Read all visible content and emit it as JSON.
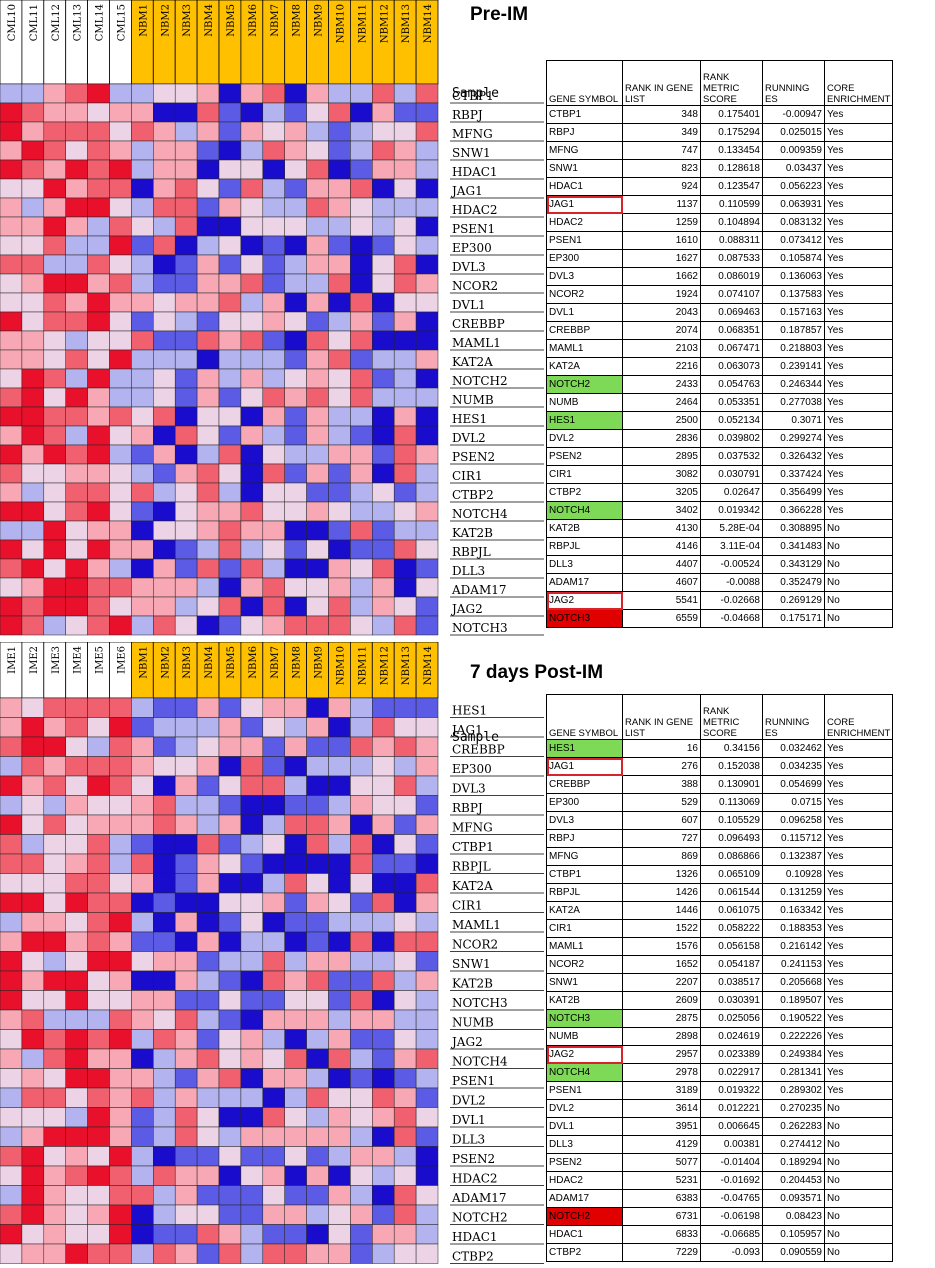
{
  "colors": {
    "sample_header_bg": "#ffc000",
    "heat_red": "#e8102a",
    "heat_blue": "#1a0ccc",
    "highlight_green": "#7ed957",
    "highlight_red": "#e00000",
    "box_outline": "#d9232a"
  },
  "table_headers": [
    "GENE SYMBOL",
    "RANK IN GENE LIST",
    "RANK METRIC SCORE",
    "RUNNING ES",
    "CORE ENRICHMENT"
  ],
  "chart_data": [
    {
      "type": "heatmap",
      "title": "Pre-IM",
      "row_header": "Sample",
      "columns": [
        "CML10",
        "CML11",
        "CML12",
        "CML13",
        "CML14",
        "CML15",
        "NBM1",
        "NBM2",
        "NBM3",
        "NBM4",
        "NBM5",
        "NBM6",
        "NBM7",
        "NBM8",
        "NBM9",
        "NBM10",
        "NBM11",
        "NBM12",
        "NBM13",
        "NBM14"
      ],
      "highlighted_columns": [
        "NBM1",
        "NBM2",
        "NBM3",
        "NBM4",
        "NBM5",
        "NBM6",
        "NBM7",
        "NBM8",
        "NBM9",
        "NBM10",
        "NBM11",
        "NBM12",
        "NBM13",
        "NBM14"
      ],
      "rows": [
        "CTBP1",
        "RBPJ",
        "MFNG",
        "SNW1",
        "HDAC1",
        "JAG1",
        "HDAC2",
        "PSEN1",
        "EP300",
        "DVL3",
        "NCOR2",
        "DVL1",
        "CREBBP",
        "MAML1",
        "KAT2A",
        "NOTCH2",
        "NUMB",
        "HES1",
        "DVL2",
        "PSEN2",
        "CIR1",
        "CTBP2",
        "NOTCH4",
        "KAT2B",
        "RBPJL",
        "DLL3",
        "ADAM17",
        "JAG2",
        "NOTCH3"
      ],
      "table": [
        {
          "symbol": "CTBP1",
          "rank": "348",
          "score": "0.175401",
          "es": "-0.00947",
          "core": "Yes"
        },
        {
          "symbol": "RBPJ",
          "rank": "349",
          "score": "0.175294",
          "es": "0.025015",
          "core": "Yes"
        },
        {
          "symbol": "MFNG",
          "rank": "747",
          "score": "0.133454",
          "es": "0.009359",
          "core": "Yes"
        },
        {
          "symbol": "SNW1",
          "rank": "823",
          "score": "0.128618",
          "es": "0.03437",
          "core": "Yes"
        },
        {
          "symbol": "HDAC1",
          "rank": "924",
          "score": "0.123547",
          "es": "0.056223",
          "core": "Yes"
        },
        {
          "symbol": "JAG1",
          "rank": "1137",
          "score": "0.110599",
          "es": "0.063931",
          "core": "Yes",
          "mark": "boxed"
        },
        {
          "symbol": "HDAC2",
          "rank": "1259",
          "score": "0.104894",
          "es": "0.083132",
          "core": "Yes"
        },
        {
          "symbol": "PSEN1",
          "rank": "1610",
          "score": "0.088311",
          "es": "0.073412",
          "core": "Yes"
        },
        {
          "symbol": "EP300",
          "rank": "1627",
          "score": "0.087533",
          "es": "0.105874",
          "core": "Yes"
        },
        {
          "symbol": "DVL3",
          "rank": "1662",
          "score": "0.086019",
          "es": "0.136063",
          "core": "Yes"
        },
        {
          "symbol": "NCOR2",
          "rank": "1924",
          "score": "0.074107",
          "es": "0.137583",
          "core": "Yes"
        },
        {
          "symbol": "DVL1",
          "rank": "2043",
          "score": "0.069463",
          "es": "0.157163",
          "core": "Yes"
        },
        {
          "symbol": "CREBBP",
          "rank": "2074",
          "score": "0.068351",
          "es": "0.187857",
          "core": "Yes"
        },
        {
          "symbol": "MAML1",
          "rank": "2103",
          "score": "0.067471",
          "es": "0.218803",
          "core": "Yes"
        },
        {
          "symbol": "KAT2A",
          "rank": "2216",
          "score": "0.063073",
          "es": "0.239141",
          "core": "Yes"
        },
        {
          "symbol": "NOTCH2",
          "rank": "2433",
          "score": "0.054763",
          "es": "0.246344",
          "core": "Yes",
          "mark": "green"
        },
        {
          "symbol": "NUMB",
          "rank": "2464",
          "score": "0.053351",
          "es": "0.277038",
          "core": "Yes"
        },
        {
          "symbol": "HES1",
          "rank": "2500",
          "score": "0.052134",
          "es": "0.3071",
          "core": "Yes",
          "mark": "green"
        },
        {
          "symbol": "DVL2",
          "rank": "2836",
          "score": "0.039802",
          "es": "0.299274",
          "core": "Yes"
        },
        {
          "symbol": "PSEN2",
          "rank": "2895",
          "score": "0.037532",
          "es": "0.326432",
          "core": "Yes"
        },
        {
          "symbol": "CIR1",
          "rank": "3082",
          "score": "0.030791",
          "es": "0.337424",
          "core": "Yes"
        },
        {
          "symbol": "CTBP2",
          "rank": "3205",
          "score": "0.02647",
          "es": "0.356499",
          "core": "Yes"
        },
        {
          "symbol": "NOTCH4",
          "rank": "3402",
          "score": "0.019342",
          "es": "0.366228",
          "core": "Yes",
          "mark": "green"
        },
        {
          "symbol": "KAT2B",
          "rank": "4130",
          "score": "5.28E-04",
          "es": "0.308895",
          "core": "No"
        },
        {
          "symbol": "RBPJL",
          "rank": "4146",
          "score": "3.11E-04",
          "es": "0.341483",
          "core": "No"
        },
        {
          "symbol": "DLL3",
          "rank": "4407",
          "score": "-0.00524",
          "es": "0.343129",
          "core": "No"
        },
        {
          "symbol": "ADAM17",
          "rank": "4607",
          "score": "-0.0088",
          "es": "0.352479",
          "core": "No"
        },
        {
          "symbol": "JAG2",
          "rank": "5541",
          "score": "-0.02668",
          "es": "0.269129",
          "core": "No",
          "mark": "boxed"
        },
        {
          "symbol": "NOTCH3",
          "rank": "6559",
          "score": "-0.04668",
          "es": "0.175171",
          "core": "No",
          "mark": "red"
        }
      ]
    },
    {
      "type": "heatmap",
      "title": "7 days Post-IM",
      "row_header": "Sample",
      "columns": [
        "IME1",
        "IME2",
        "IME3",
        "IME4",
        "IME5",
        "IME6",
        "NBM1",
        "NBM2",
        "NBM3",
        "NBM4",
        "NBM5",
        "NBM6",
        "NBM7",
        "NBM8",
        "NBM9",
        "NBM10",
        "NBM11",
        "NBM12",
        "NBM13",
        "NBM14"
      ],
      "highlighted_columns": [
        "NBM1",
        "NBM2",
        "NBM3",
        "NBM4",
        "NBM5",
        "NBM6",
        "NBM7",
        "NBM8",
        "NBM9",
        "NBM10",
        "NBM11",
        "NBM12",
        "NBM13",
        "NBM14"
      ],
      "rows": [
        "HES1",
        "JAG1",
        "CREBBP",
        "EP300",
        "DVL3",
        "RBPJ",
        "MFNG",
        "CTBP1",
        "RBPJL",
        "KAT2A",
        "CIR1",
        "MAML1",
        "NCOR2",
        "SNW1",
        "KAT2B",
        "NOTCH3",
        "NUMB",
        "JAG2",
        "NOTCH4",
        "PSEN1",
        "DVL2",
        "DVL1",
        "DLL3",
        "PSEN2",
        "HDAC2",
        "ADAM17",
        "NOTCH2",
        "HDAC1",
        "CTBP2"
      ],
      "table": [
        {
          "symbol": "HES1",
          "rank": "16",
          "score": "0.34156",
          "es": "0.032462",
          "core": "Yes",
          "mark": "green"
        },
        {
          "symbol": "JAG1",
          "rank": "276",
          "score": "0.152038",
          "es": "0.034235",
          "core": "Yes",
          "mark": "boxed"
        },
        {
          "symbol": "CREBBP",
          "rank": "388",
          "score": "0.130901",
          "es": "0.054699",
          "core": "Yes"
        },
        {
          "symbol": "EP300",
          "rank": "529",
          "score": "0.113069",
          "es": "0.0715",
          "core": "Yes"
        },
        {
          "symbol": "DVL3",
          "rank": "607",
          "score": "0.105529",
          "es": "0.096258",
          "core": "Yes"
        },
        {
          "symbol": "RBPJ",
          "rank": "727",
          "score": "0.096493",
          "es": "0.115712",
          "core": "Yes"
        },
        {
          "symbol": "MFNG",
          "rank": "869",
          "score": "0.086866",
          "es": "0.132387",
          "core": "Yes"
        },
        {
          "symbol": "CTBP1",
          "rank": "1326",
          "score": "0.065109",
          "es": "0.10928",
          "core": "Yes"
        },
        {
          "symbol": "RBPJL",
          "rank": "1426",
          "score": "0.061544",
          "es": "0.131259",
          "core": "Yes"
        },
        {
          "symbol": "KAT2A",
          "rank": "1446",
          "score": "0.061075",
          "es": "0.163342",
          "core": "Yes"
        },
        {
          "symbol": "CIR1",
          "rank": "1522",
          "score": "0.058222",
          "es": "0.188353",
          "core": "Yes"
        },
        {
          "symbol": "MAML1",
          "rank": "1576",
          "score": "0.056158",
          "es": "0.216142",
          "core": "Yes"
        },
        {
          "symbol": "NCOR2",
          "rank": "1652",
          "score": "0.054187",
          "es": "0.241153",
          "core": "Yes"
        },
        {
          "symbol": "SNW1",
          "rank": "2207",
          "score": "0.038517",
          "es": "0.205668",
          "core": "Yes"
        },
        {
          "symbol": "KAT2B",
          "rank": "2609",
          "score": "0.030391",
          "es": "0.189507",
          "core": "Yes"
        },
        {
          "symbol": "NOTCH3",
          "rank": "2875",
          "score": "0.025056",
          "es": "0.190522",
          "core": "Yes",
          "mark": "green"
        },
        {
          "symbol": "NUMB",
          "rank": "2898",
          "score": "0.024619",
          "es": "0.222226",
          "core": "Yes"
        },
        {
          "symbol": "JAG2",
          "rank": "2957",
          "score": "0.023389",
          "es": "0.249384",
          "core": "Yes",
          "mark": "boxed"
        },
        {
          "symbol": "NOTCH4",
          "rank": "2978",
          "score": "0.022917",
          "es": "0.281341",
          "core": "Yes",
          "mark": "green"
        },
        {
          "symbol": "PSEN1",
          "rank": "3189",
          "score": "0.019322",
          "es": "0.289302",
          "core": "Yes"
        },
        {
          "symbol": "DVL2",
          "rank": "3614",
          "score": "0.012221",
          "es": "0.270235",
          "core": "No"
        },
        {
          "symbol": "DVL1",
          "rank": "3951",
          "score": "0.006645",
          "es": "0.262283",
          "core": "No"
        },
        {
          "symbol": "DLL3",
          "rank": "4129",
          "score": "0.00381",
          "es": "0.274412",
          "core": "No"
        },
        {
          "symbol": "PSEN2",
          "rank": "5077",
          "score": "-0.01404",
          "es": "0.189294",
          "core": "No"
        },
        {
          "symbol": "HDAC2",
          "rank": "5231",
          "score": "-0.01692",
          "es": "0.204453",
          "core": "No"
        },
        {
          "symbol": "ADAM17",
          "rank": "6383",
          "score": "-0.04765",
          "es": "0.093571",
          "core": "No"
        },
        {
          "symbol": "NOTCH2",
          "rank": "6731",
          "score": "-0.06198",
          "es": "0.08423",
          "core": "No",
          "mark": "red"
        },
        {
          "symbol": "HDAC1",
          "rank": "6833",
          "score": "-0.06685",
          "es": "0.105957",
          "core": "No"
        },
        {
          "symbol": "CTBP2",
          "rank": "7229",
          "score": "-0.093",
          "es": "0.090559",
          "core": "No"
        }
      ]
    }
  ]
}
